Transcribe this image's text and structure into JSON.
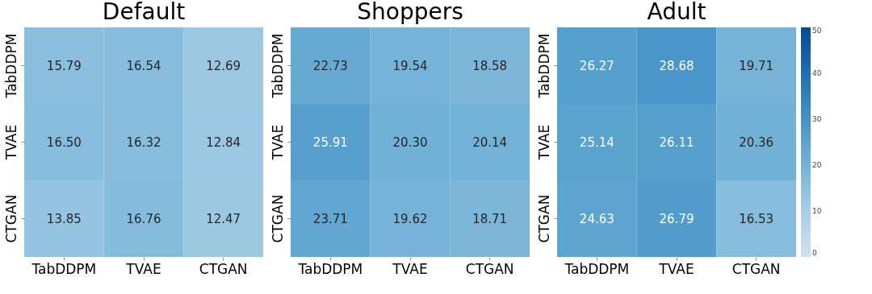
{
  "chart_data": [
    {
      "type": "heatmap",
      "title": "Default",
      "categories": [
        "TabDDPM",
        "TVAE",
        "CTGAN"
      ],
      "y_categories": [
        "TabDDPM",
        "TVAE",
        "CTGAN"
      ],
      "cells": [
        [
          15.79,
          16.54,
          12.69
        ],
        [
          16.5,
          16.32,
          12.84
        ],
        [
          13.85,
          16.76,
          12.47
        ]
      ],
      "cell_labels": [
        [
          "15.79",
          "16.54",
          "12.69"
        ],
        [
          "16.50",
          "16.32",
          "12.84"
        ],
        [
          "13.85",
          "16.76",
          "12.47"
        ]
      ]
    },
    {
      "type": "heatmap",
      "title": "Shoppers",
      "categories": [
        "TabDDPM",
        "TVAE",
        "CTGAN"
      ],
      "y_categories": [
        "TabDDPM",
        "TVAE",
        "CTGAN"
      ],
      "cells": [
        [
          22.73,
          19.54,
          18.58
        ],
        [
          25.91,
          20.3,
          20.14
        ],
        [
          23.71,
          19.62,
          18.71
        ]
      ],
      "cell_labels": [
        [
          "22.73",
          "19.54",
          "18.58"
        ],
        [
          "25.91",
          "20.30",
          "20.14"
        ],
        [
          "23.71",
          "19.62",
          "18.71"
        ]
      ]
    },
    {
      "type": "heatmap",
      "title": "Adult",
      "categories": [
        "TabDDPM",
        "TVAE",
        "CTGAN"
      ],
      "y_categories": [
        "TabDDPM",
        "TVAE",
        "CTGAN"
      ],
      "cells": [
        [
          26.27,
          28.68,
          19.71
        ],
        [
          25.14,
          26.11,
          20.36
        ],
        [
          24.63,
          26.79,
          16.53
        ]
      ],
      "cell_labels": [
        [
          "26.27",
          "28.68",
          "19.71"
        ],
        [
          "25.14",
          "26.11",
          "20.36"
        ],
        [
          "24.63",
          "26.79",
          "16.53"
        ]
      ],
      "clim": [
        0,
        50
      ],
      "cticks": [
        0,
        10,
        20,
        30,
        40,
        50
      ]
    }
  ]
}
